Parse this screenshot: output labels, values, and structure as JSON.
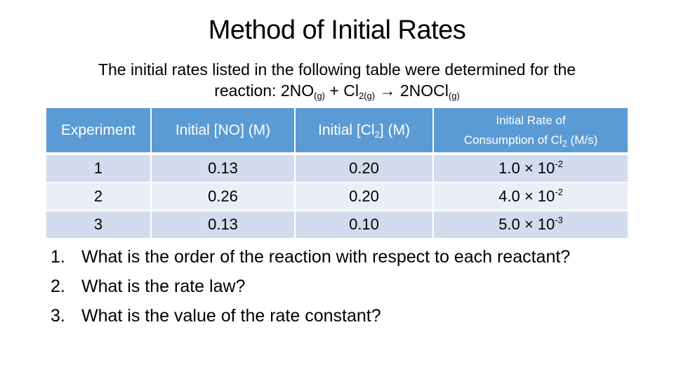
{
  "title": "Method of Initial Rates",
  "intro": {
    "text": "The initial rates listed in the following table were determined for the",
    "reaction_prefix": "reaction: 2NO",
    "no_state": "(g)",
    "plus_cl": " + Cl",
    "cl_state": "2(g)",
    "arrow": " → ",
    "product": "2NOCl",
    "product_state": "(g)"
  },
  "table": {
    "headers": {
      "experiment": "Experiment",
      "no": "Initial [NO] (M)",
      "cl2_prefix": "Initial [Cl",
      "cl2_sub": "2",
      "cl2_suffix": "] (M)",
      "rate_line1": "Initial Rate of",
      "rate_line2_prefix": "Consumption of Cl",
      "rate_line2_sub": "2",
      "rate_line2_suffix": " (M/s)"
    },
    "rows": [
      {
        "experiment": "1",
        "no": "0.13",
        "cl2": "0.20",
        "rate_base": "1.0 × 10",
        "rate_exp": "-2"
      },
      {
        "experiment": "2",
        "no": "0.26",
        "cl2": "0.20",
        "rate_base": "4.0 × 10",
        "rate_exp": "-2"
      },
      {
        "experiment": "3",
        "no": "0.13",
        "cl2": "0.10",
        "rate_base": "5.0 × 10",
        "rate_exp": "-3"
      }
    ]
  },
  "questions": [
    {
      "number": "1.",
      "text": "What is the order of the reaction with respect to each reactant?"
    },
    {
      "number": "2.",
      "text": "What is the rate law?"
    },
    {
      "number": "3.",
      "text": "What is the value of the rate constant?"
    }
  ],
  "colors": {
    "header_bg": "#5b9bd5",
    "row_bg": "#d3dcee",
    "row_alt_bg": "#eaeff7"
  }
}
